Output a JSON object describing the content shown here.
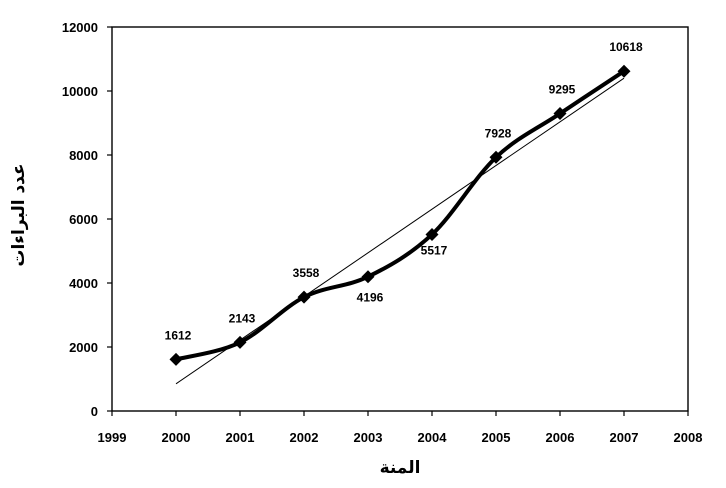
{
  "chart_data": {
    "type": "line",
    "title": "",
    "xlabel": "المنة",
    "ylabel": "عدد البراءات",
    "x": [
      2000,
      2001,
      2002,
      2003,
      2004,
      2005,
      2006,
      2007
    ],
    "series": [
      {
        "values": [
          1612,
          2143,
          3558,
          4196,
          5517,
          7928,
          9295,
          10618
        ]
      }
    ],
    "data_labels": [
      "1612",
      "2143",
      "3558",
      "4196",
      "5517",
      "7928",
      "9295",
      "10618"
    ],
    "trendline": {
      "type": "linear",
      "from": {
        "x": 2000,
        "y": 850
      },
      "to": {
        "x": 2007,
        "y": 10400
      }
    },
    "xlim": [
      1999,
      2008
    ],
    "ylim": [
      0,
      12000
    ],
    "x_ticks": [
      "1999",
      "2000",
      "2001",
      "2002",
      "2003",
      "2004",
      "2005",
      "2006",
      "2007",
      "2008"
    ],
    "y_ticks": [
      "0",
      "2000",
      "4000",
      "6000",
      "8000",
      "10000",
      "12000"
    ],
    "grid": false,
    "legend": "none",
    "colors": {
      "series": "#000000",
      "trend": "#000000"
    }
  }
}
